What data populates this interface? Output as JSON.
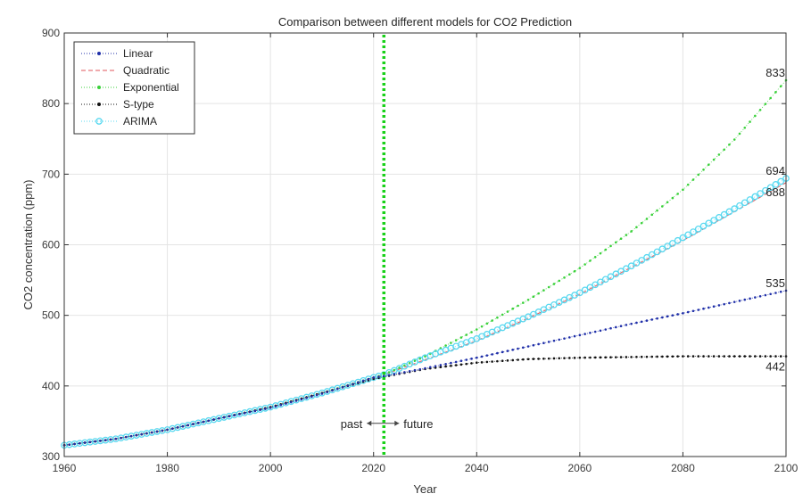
{
  "chart_data": {
    "type": "line",
    "title": "Comparison between different models for CO2 Prediction",
    "xlabel": "Year",
    "ylabel": "CO2 concentration (ppm)",
    "xlim": [
      1960,
      2100
    ],
    "ylim": [
      300,
      900
    ],
    "xticks": [
      1960,
      1980,
      2000,
      2020,
      2040,
      2060,
      2080,
      2100
    ],
    "yticks": [
      300,
      400,
      500,
      600,
      700,
      800,
      900
    ],
    "grid": true,
    "legend_position": "top-left",
    "divider": {
      "x": 2022,
      "color": "#19d119"
    },
    "annotation": {
      "past": "past",
      "future": "future",
      "x": 2022,
      "y": 347
    },
    "series": [
      {
        "name": "Linear",
        "color": "#1f2fa8",
        "marker": "dot",
        "x": [
          1960,
          1970,
          1980,
          1990,
          2000,
          2010,
          2020,
          2022,
          2030,
          2040,
          2050,
          2060,
          2070,
          2080,
          2090,
          2100
        ],
        "y": [
          316,
          325,
          338,
          354,
          369,
          389,
          412,
          414,
          425,
          440,
          456,
          472,
          488,
          503,
          519,
          535
        ]
      },
      {
        "name": "Quadratic",
        "color": "#e0565b",
        "marker": "dash",
        "x": [
          1960,
          1970,
          1980,
          1990,
          2000,
          2010,
          2020,
          2022,
          2030,
          2040,
          2050,
          2060,
          2070,
          2080,
          2090,
          2100
        ],
        "y": [
          316,
          325,
          338,
          354,
          370,
          390,
          412,
          416,
          437,
          464,
          496,
          530,
          568,
          606,
          647,
          688
        ]
      },
      {
        "name": "Exponential",
        "color": "#3ad13a",
        "marker": "dot",
        "x": [
          1960,
          1970,
          1980,
          1990,
          2000,
          2010,
          2020,
          2022,
          2030,
          2040,
          2050,
          2060,
          2070,
          2080,
          2090,
          2100
        ],
        "y": [
          316,
          325,
          338,
          354,
          370,
          390,
          412,
          416,
          442,
          480,
          522,
          567,
          619,
          678,
          749,
          833
        ]
      },
      {
        "name": "S-type",
        "color": "#111111",
        "marker": "dot",
        "x": [
          1960,
          1970,
          1980,
          1990,
          2000,
          2010,
          2020,
          2022,
          2030,
          2040,
          2050,
          2060,
          2070,
          2080,
          2090,
          2100
        ],
        "y": [
          316,
          325,
          338,
          354,
          370,
          390,
          410,
          413,
          424,
          433,
          438,
          440,
          441,
          442,
          442,
          442
        ]
      },
      {
        "name": "ARIMA",
        "color": "#58d8f0",
        "marker": "circle",
        "x": [
          1960,
          1970,
          1980,
          1990,
          2000,
          2010,
          2020,
          2022,
          2030,
          2040,
          2050,
          2060,
          2070,
          2080,
          2090,
          2100
        ],
        "y": [
          316,
          325,
          338,
          354,
          370,
          390,
          412,
          416,
          440,
          467,
          498,
          532,
          570,
          610,
          651,
          694
        ]
      }
    ],
    "end_labels": [
      {
        "value": 833,
        "text": "833"
      },
      {
        "value": 694,
        "text": "694"
      },
      {
        "value": 688,
        "text": "688"
      },
      {
        "value": 535,
        "text": "535"
      },
      {
        "value": 442,
        "text": "442"
      }
    ]
  }
}
